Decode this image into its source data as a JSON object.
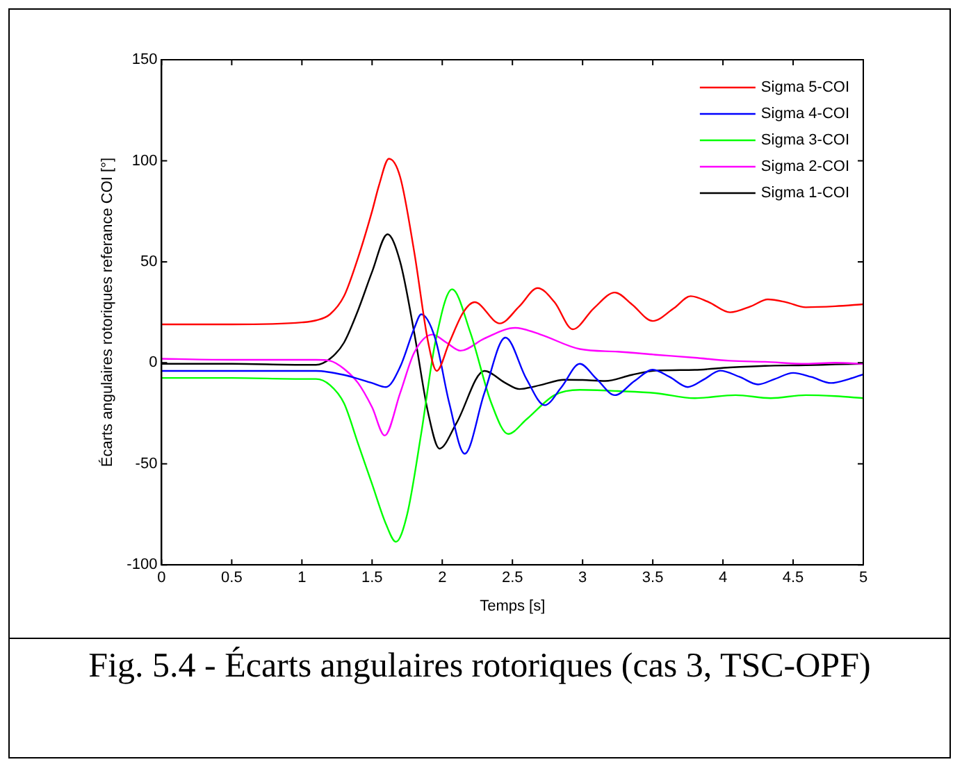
{
  "chart_data": {
    "type": "line",
    "xlabel": "Temps [s]",
    "ylabel": "Écarts angulaires rotoriques referance COI [°]",
    "annotations": [
      "Fig. 5.4 - Écarts angulaires rotoriques (cas 3, TSC-OPF)"
    ],
    "xlim": [
      0,
      5
    ],
    "xticks": [
      0,
      0.5,
      1,
      1.5,
      2,
      2.5,
      3,
      3.5,
      4,
      4.5,
      5
    ],
    "ylim": [
      -100,
      150
    ],
    "yticks": [
      -100,
      -50,
      0,
      50,
      100,
      150
    ],
    "grid": false,
    "legend": "top right",
    "marker": "none",
    "line_style": "solid",
    "series": [
      {
        "name": "Sigma 5-COI",
        "color": "#ff0000",
        "x": [
          0,
          0.5,
          1,
          1.1,
          1.2,
          1.3,
          1.4,
          1.5,
          1.55,
          1.62,
          1.7,
          1.8,
          1.9,
          1.96,
          2.05,
          2.15,
          2.23,
          2.41,
          2.55,
          2.68,
          2.8,
          2.93,
          3.08,
          3.23,
          3.35,
          3.5,
          3.65,
          3.77,
          3.9,
          4.05,
          4.2,
          4.32,
          4.45,
          4.59,
          4.8,
          5
        ],
        "values": [
          19,
          19,
          20,
          21,
          24,
          33,
          52,
          75,
          88,
          101,
          92,
          55,
          10,
          -4,
          10,
          25,
          30,
          19.5,
          28,
          37,
          30,
          16.6,
          27,
          34.8,
          29,
          20.7,
          27,
          33,
          30,
          25,
          28,
          31.4,
          30,
          27.5,
          28,
          29
        ]
      },
      {
        "name": "Sigma 4-COI",
        "color": "#0000ff",
        "x": [
          0,
          0.5,
          1,
          1.1,
          1.3,
          1.5,
          1.6,
          1.7,
          1.8,
          1.85,
          1.95,
          2.05,
          2.16,
          2.3,
          2.45,
          2.6,
          2.73,
          2.85,
          2.98,
          3.1,
          3.23,
          3.37,
          3.5,
          3.62,
          3.75,
          3.87,
          3.98,
          4.12,
          4.25,
          4.37,
          4.5,
          4.63,
          4.77,
          4.9,
          5
        ],
        "values": [
          -4,
          -4,
          -4,
          -4,
          -6,
          -10,
          -12,
          -2,
          17,
          24,
          12,
          -20,
          -45,
          -15,
          12.5,
          -8,
          -21,
          -12,
          -0.5,
          -8,
          -16,
          -9,
          -3.4,
          -7,
          -12,
          -8,
          -3.9,
          -7,
          -10.7,
          -8,
          -5,
          -7,
          -10,
          -8,
          -5.7
        ]
      },
      {
        "name": "Sigma 3-COI",
        "color": "#00ff00",
        "x": [
          0,
          0.5,
          1,
          1.1,
          1.2,
          1.3,
          1.4,
          1.5,
          1.6,
          1.67,
          1.75,
          1.85,
          1.95,
          2.07,
          2.2,
          2.35,
          2.47,
          2.6,
          2.8,
          2.98,
          3.25,
          3.52,
          3.8,
          4.09,
          4.34,
          4.59,
          4.8,
          5
        ],
        "values": [
          -7.5,
          -7.5,
          -8,
          -8,
          -11,
          -20,
          -40,
          -60,
          -80,
          -88.6,
          -75,
          -35,
          10,
          36.4,
          15,
          -20,
          -35.2,
          -28,
          -16,
          -13.4,
          -14,
          -15,
          -17.5,
          -16,
          -17.5,
          -16,
          -16.5,
          -17.5
        ]
      },
      {
        "name": "Sigma 2-COI",
        "color": "#ff00ff",
        "x": [
          0,
          0.5,
          1,
          1.1,
          1.2,
          1.3,
          1.4,
          1.5,
          1.59,
          1.7,
          1.8,
          1.93,
          2.03,
          2.13,
          2.3,
          2.52,
          2.7,
          2.98,
          3.25,
          3.52,
          3.8,
          4.05,
          4.3,
          4.59,
          4.8,
          5
        ],
        "values": [
          2,
          1.5,
          1.5,
          1.5,
          1,
          -3,
          -10,
          -22,
          -36,
          -15,
          5,
          14,
          10,
          6,
          12,
          17.3,
          14,
          6.8,
          5.5,
          4,
          2.5,
          1,
          0.5,
          -0.5,
          0,
          -0.5
        ]
      },
      {
        "name": "Sigma 1-COI",
        "color": "#000000",
        "x": [
          0,
          0.5,
          1,
          1.1,
          1.2,
          1.3,
          1.4,
          1.5,
          1.61,
          1.7,
          1.8,
          1.9,
          1.98,
          2.1,
          2.3,
          2.45,
          2.55,
          2.7,
          2.87,
          3.0,
          3.16,
          3.35,
          3.52,
          3.8,
          4.05,
          4.3,
          4.59,
          4.8,
          5
        ],
        "values": [
          -0.5,
          -0.5,
          -1,
          -1,
          2,
          10,
          26,
          45,
          63.6,
          50,
          15,
          -25,
          -42.5,
          -30,
          -4,
          -10,
          -13,
          -11,
          -8.4,
          -8.5,
          -9,
          -6,
          -3.9,
          -3.5,
          -2.3,
          -1.5,
          -1.2,
          -0.8,
          -0.5
        ]
      }
    ]
  }
}
